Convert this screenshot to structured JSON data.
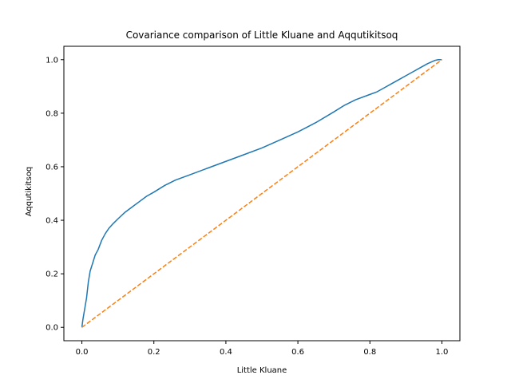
{
  "chart_data": {
    "type": "line",
    "title": "Covariance comparison of Little Kluane and Aqqutikitsoq",
    "xlabel": "Little Kluane",
    "ylabel": "Aqqutikitsoq",
    "xlim": [
      -0.05,
      1.05
    ],
    "ylim": [
      -0.05,
      1.05
    ],
    "xticks": [
      0.0,
      0.2,
      0.4,
      0.6,
      0.8,
      1.0
    ],
    "yticks": [
      0.0,
      0.2,
      0.4,
      0.6,
      0.8,
      1.0
    ],
    "xtick_labels": [
      "0.0",
      "0.2",
      "0.4",
      "0.6",
      "0.8",
      "1.0"
    ],
    "ytick_labels": [
      "0.0",
      "0.2",
      "0.4",
      "0.6",
      "0.8",
      "1.0"
    ],
    "grid": false,
    "legend": false,
    "series": [
      {
        "color": "#1f77b4",
        "style": "solid",
        "x": [
          0.0,
          0.003,
          0.008,
          0.013,
          0.018,
          0.023,
          0.03,
          0.037,
          0.045,
          0.055,
          0.065,
          0.075,
          0.085,
          0.1,
          0.12,
          0.14,
          0.16,
          0.18,
          0.2,
          0.23,
          0.26,
          0.3,
          0.35,
          0.4,
          0.45,
          0.5,
          0.55,
          0.6,
          0.65,
          0.7,
          0.73,
          0.76,
          0.8,
          0.82,
          0.84,
          0.86,
          0.88,
          0.9,
          0.92,
          0.94,
          0.96,
          0.98,
          0.99,
          1.0
        ],
        "y": [
          0.0,
          0.03,
          0.07,
          0.11,
          0.17,
          0.21,
          0.24,
          0.27,
          0.29,
          0.325,
          0.35,
          0.37,
          0.385,
          0.405,
          0.43,
          0.45,
          0.47,
          0.49,
          0.505,
          0.53,
          0.55,
          0.57,
          0.595,
          0.62,
          0.645,
          0.67,
          0.7,
          0.73,
          0.765,
          0.805,
          0.83,
          0.85,
          0.87,
          0.88,
          0.895,
          0.91,
          0.925,
          0.94,
          0.955,
          0.97,
          0.985,
          0.997,
          1.0,
          1.0
        ]
      },
      {
        "color": "#ff7f0e",
        "style": "dashed",
        "x": [
          0.0,
          1.0
        ],
        "y": [
          0.0,
          1.0
        ]
      }
    ]
  }
}
